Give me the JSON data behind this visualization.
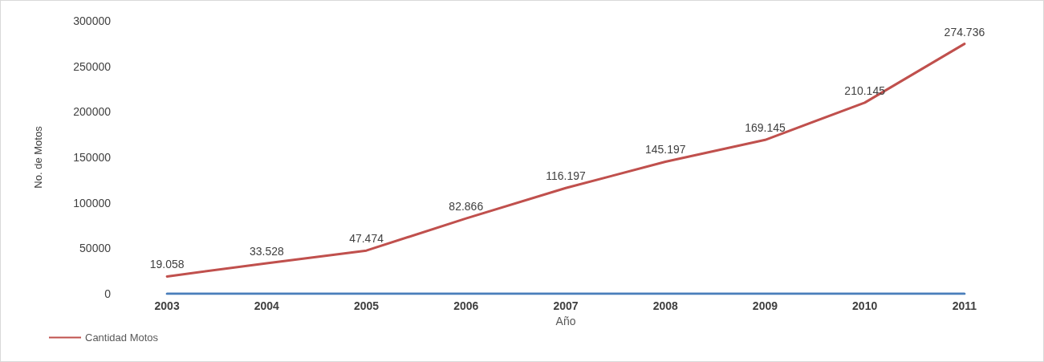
{
  "chart_data": {
    "type": "line",
    "xlabel": "Año",
    "ylabel": "No. de Motos",
    "categories": [
      "2003",
      "2004",
      "2005",
      "2006",
      "2007",
      "2008",
      "2009",
      "2010",
      "2011"
    ],
    "series": [
      {
        "name": "Cantidad Motos",
        "color": "#c0504d",
        "values": [
          19058,
          33528,
          47474,
          82866,
          116197,
          145197,
          169145,
          210145,
          274736
        ],
        "value_labels": [
          "19.058",
          "33.528",
          "47.474",
          "82.866",
          "116.197",
          "145.197",
          "169.145",
          "210.145",
          "274.736"
        ]
      },
      {
        "color": "#4a7ebb",
        "values": [
          0,
          0,
          0,
          0,
          0,
          0,
          0,
          0,
          0
        ]
      }
    ],
    "ylim": [
      0,
      300000
    ],
    "yticks": [
      0,
      50000,
      100000,
      150000,
      200000,
      250000,
      300000
    ],
    "grid": false,
    "legend": "bottom left",
    "marker": "none",
    "line_style": "solid"
  }
}
